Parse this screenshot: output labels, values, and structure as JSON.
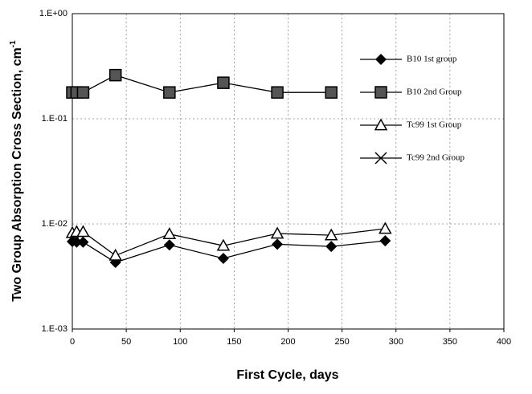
{
  "chart_data": {
    "type": "line",
    "xlabel": "First Cycle, days",
    "ylabel": "Two Group Absorption Cross Section, cm",
    "ylabel_sup": "-1",
    "log_y": true,
    "grid": true,
    "legend": "right",
    "xlim": [
      0,
      400
    ],
    "xticks": [
      0,
      50,
      100,
      150,
      200,
      250,
      300,
      350,
      400
    ],
    "ylim": [
      0.001,
      1
    ],
    "yticks": [
      {
        "value": 0.001,
        "label": "1.E-03"
      },
      {
        "value": 0.01,
        "label": "1.E-02"
      },
      {
        "value": 0.1,
        "label": "1.E-01"
      },
      {
        "value": 1,
        "label": "1.E+00"
      }
    ],
    "series": [
      {
        "name": "B10 1st group",
        "color": "#000000",
        "marker": "diamond",
        "x": [
          0,
          4,
          10,
          40,
          90,
          140,
          190,
          240,
          290
        ],
        "values": [
          0.0068,
          0.0067,
          0.0067,
          0.0043,
          0.0063,
          0.0047,
          0.0064,
          0.0061,
          0.0069
        ]
      },
      {
        "name": "B10 2nd Group",
        "color": "#000000",
        "marker": "square",
        "x": [
          0,
          4,
          10,
          40,
          90,
          140,
          190,
          240
        ],
        "values": [
          0.178,
          0.178,
          0.178,
          0.26,
          0.178,
          0.22,
          0.178,
          0.178
        ]
      },
      {
        "name": "Tc99 1st Group",
        "color": "#000000",
        "marker": "triangle",
        "x": [
          0,
          4,
          10,
          40,
          90,
          140,
          190,
          240,
          290
        ],
        "values": [
          0.0082,
          0.0084,
          0.0084,
          0.005,
          0.008,
          0.0062,
          0.0081,
          0.0078,
          0.009
        ]
      },
      {
        "name": "Tc99 2nd Group",
        "color": "#000000",
        "marker": "x",
        "x": [],
        "values": []
      }
    ]
  }
}
